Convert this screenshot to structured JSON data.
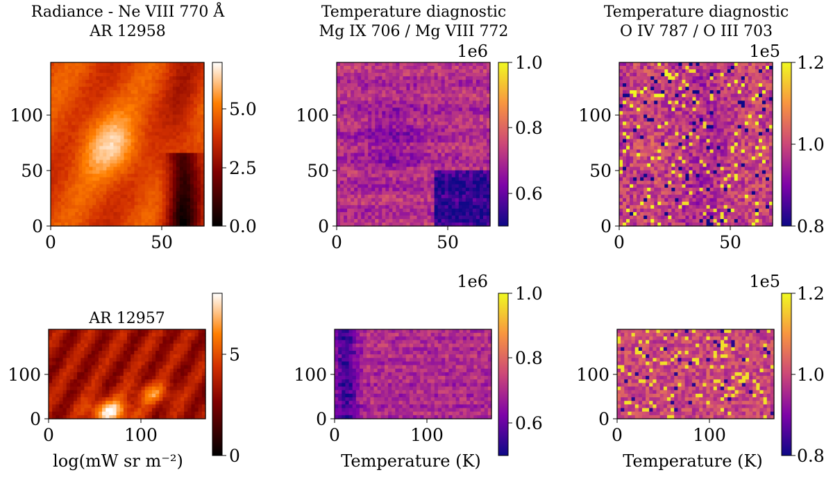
{
  "figure": {
    "chart_data": [
      {
        "type": "heatmap",
        "title": "Radiance - Ne VIII 770 Å",
        "subtitle": "AR 12958",
        "xlim": [
          0,
          69
        ],
        "ylim": [
          0,
          147
        ],
        "xticks": [
          "0",
          "50"
        ],
        "xtick_values": [
          0,
          50
        ],
        "yticks": [
          "0",
          "50",
          "100"
        ],
        "ytick_values": [
          0,
          50,
          100
        ],
        "colormap": "gist_heat",
        "colorbar": {
          "min": 0.0,
          "max": 7.0,
          "ticks": [
            "0.0",
            "2.5",
            "5.0"
          ],
          "tick_values": [
            0.0,
            2.5,
            5.0
          ],
          "label": "",
          "multiplier": ""
        },
        "xlabel": "",
        "ylabel": ""
      },
      {
        "type": "heatmap",
        "title": "Temperature diagnostic",
        "subtitle": "Mg IX 706 / Mg VIII 772",
        "xlim": [
          0,
          69
        ],
        "ylim": [
          0,
          147
        ],
        "xticks": [
          "0",
          "50"
        ],
        "xtick_values": [
          0,
          50
        ],
        "yticks": [
          "0",
          "50",
          "100"
        ],
        "ytick_values": [
          0,
          50,
          100
        ],
        "colormap": "plasma",
        "colorbar": {
          "min": 0.5,
          "max": 1.0,
          "ticks": [
            "0.6",
            "0.8",
            "1.0"
          ],
          "tick_values": [
            0.6,
            0.8,
            1.0
          ],
          "label": "",
          "multiplier": "1e6"
        },
        "xlabel": "",
        "ylabel": ""
      },
      {
        "type": "heatmap",
        "title": "Temperature diagnostic",
        "subtitle": "O IV 787 / O III 703",
        "xlim": [
          0,
          69
        ],
        "ylim": [
          0,
          147
        ],
        "xticks": [
          "0",
          "50"
        ],
        "xtick_values": [
          0,
          50
        ],
        "yticks": [
          "0",
          "50",
          "100"
        ],
        "ytick_values": [
          0,
          50,
          100
        ],
        "colormap": "plasma",
        "colorbar": {
          "min": 0.8,
          "max": 1.2,
          "ticks": [
            "0.8",
            "1.0",
            "1.2"
          ],
          "tick_values": [
            0.8,
            1.0,
            1.2
          ],
          "label": "",
          "multiplier": "1e5"
        },
        "xlabel": "",
        "ylabel": ""
      },
      {
        "type": "heatmap",
        "title": "AR 12957",
        "subtitle": "",
        "xlim": [
          0,
          170
        ],
        "ylim": [
          0,
          200
        ],
        "xticks": [
          "0",
          "100"
        ],
        "xtick_values": [
          0,
          100
        ],
        "yticks": [
          "0",
          "100"
        ],
        "ytick_values": [
          0,
          100
        ],
        "colormap": "gist_heat",
        "colorbar": {
          "min": 0.0,
          "max": 8.0,
          "ticks": [
            "0",
            "5"
          ],
          "tick_values": [
            0,
            5
          ],
          "label": "",
          "multiplier": ""
        },
        "xlabel": "log(mW sr m⁻²)",
        "ylabel": ""
      },
      {
        "type": "heatmap",
        "title": "",
        "subtitle": "",
        "xlim": [
          0,
          170
        ],
        "ylim": [
          0,
          200
        ],
        "xticks": [
          "0",
          "100"
        ],
        "xtick_values": [
          0,
          100
        ],
        "yticks": [
          "0",
          "100"
        ],
        "ytick_values": [
          0,
          100
        ],
        "colormap": "plasma",
        "colorbar": {
          "min": 0.5,
          "max": 1.0,
          "ticks": [
            "0.6",
            "0.8",
            "1.0"
          ],
          "tick_values": [
            0.6,
            0.8,
            1.0
          ],
          "label": "",
          "multiplier": "1e6"
        },
        "xlabel": "Temperature (K)",
        "ylabel": ""
      },
      {
        "type": "heatmap",
        "title": "",
        "subtitle": "",
        "xlim": [
          0,
          170
        ],
        "ylim": [
          0,
          200
        ],
        "xticks": [
          "0",
          "100"
        ],
        "xtick_values": [
          0,
          100
        ],
        "yticks": [
          "0",
          "100"
        ],
        "ytick_values": [
          0,
          100
        ],
        "colormap": "plasma",
        "colorbar": {
          "min": 0.8,
          "max": 1.2,
          "ticks": [
            "0.8",
            "1.0",
            "1.2"
          ],
          "tick_values": [
            0.8,
            1.0,
            1.2
          ],
          "label": "",
          "multiplier": "1e5"
        },
        "xlabel": "Temperature (K)",
        "ylabel": ""
      }
    ]
  }
}
